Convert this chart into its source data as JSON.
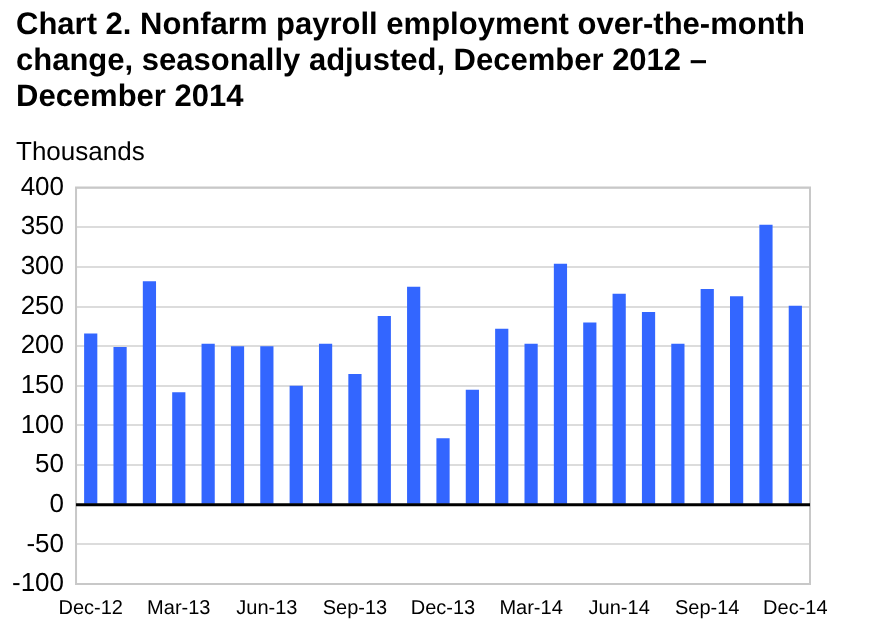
{
  "chart_data": {
    "type": "bar",
    "title": "Chart 2. Nonfarm payroll employment over-the-month change, seasonally adjusted, December 2012 – December 2014",
    "ylabel": "Thousands",
    "categories": [
      "Dec-12",
      null,
      null,
      "Mar-13",
      null,
      null,
      "Jun-13",
      null,
      null,
      "Sep-13",
      null,
      null,
      "Dec-13",
      null,
      null,
      "Mar-14",
      null,
      null,
      "Jun-14",
      null,
      null,
      "Sep-14",
      null,
      null,
      "Dec-14"
    ],
    "values": [
      216,
      199,
      282,
      142,
      203,
      200,
      200,
      150,
      203,
      165,
      238,
      275,
      84,
      145,
      222,
      203,
      304,
      230,
      266,
      243,
      203,
      272,
      263,
      353,
      251
    ],
    "color": "#3366ff",
    "ylim": [
      -100,
      400
    ],
    "yticks": [
      -100,
      -50,
      0,
      50,
      100,
      150,
      200,
      250,
      300,
      350,
      400
    ],
    "grid": "y",
    "legend": false
  }
}
